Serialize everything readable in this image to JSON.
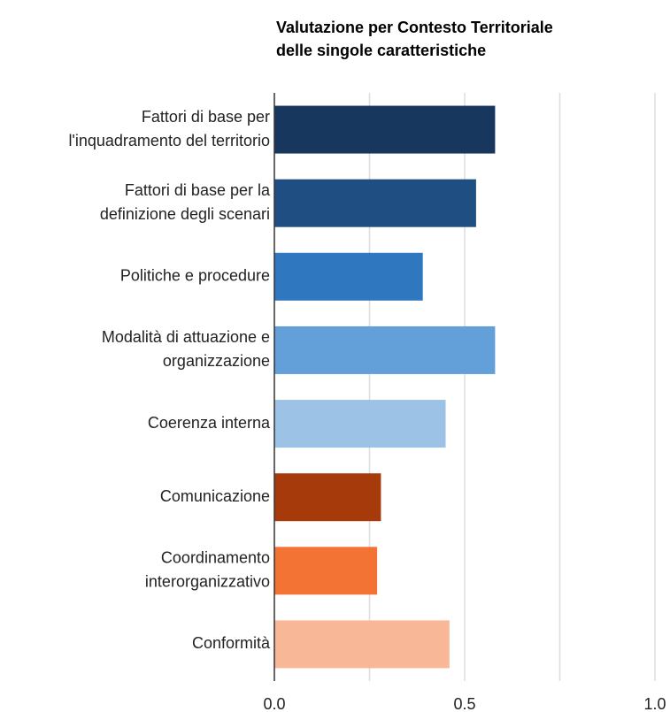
{
  "chart_data": {
    "type": "bar",
    "orientation": "horizontal",
    "title": [
      "Valutazione per Contesto Territoriale",
      "delle singole caratteristiche"
    ],
    "categories": [
      [
        "Fattori di base per",
        "l'inquadramento del territorio"
      ],
      [
        "Fattori di base per la",
        "definizione degli scenari"
      ],
      [
        "Politiche e procedure"
      ],
      [
        "Modalità di attuazione e",
        "organizzazione"
      ],
      [
        "Coerenza interna"
      ],
      [
        "Comunicazione"
      ],
      [
        "Coordinamento",
        "interorganizzativo"
      ],
      [
        "Conformità"
      ]
    ],
    "values": [
      0.58,
      0.53,
      0.39,
      0.58,
      0.45,
      0.28,
      0.27,
      0.46
    ],
    "colors": [
      "#17375e",
      "#1f4e82",
      "#2f77bf",
      "#63a0d9",
      "#9cc2e6",
      "#a63a0a",
      "#f37335",
      "#f8b796"
    ],
    "xlim": [
      0,
      1
    ],
    "xticks": [
      {
        "value": 0,
        "label": "0.0"
      },
      0.5,
      {
        "value": 1,
        "label": "1.0"
      }
    ],
    "xgrid": [
      0.25,
      0.75
    ],
    "grid": true
  }
}
